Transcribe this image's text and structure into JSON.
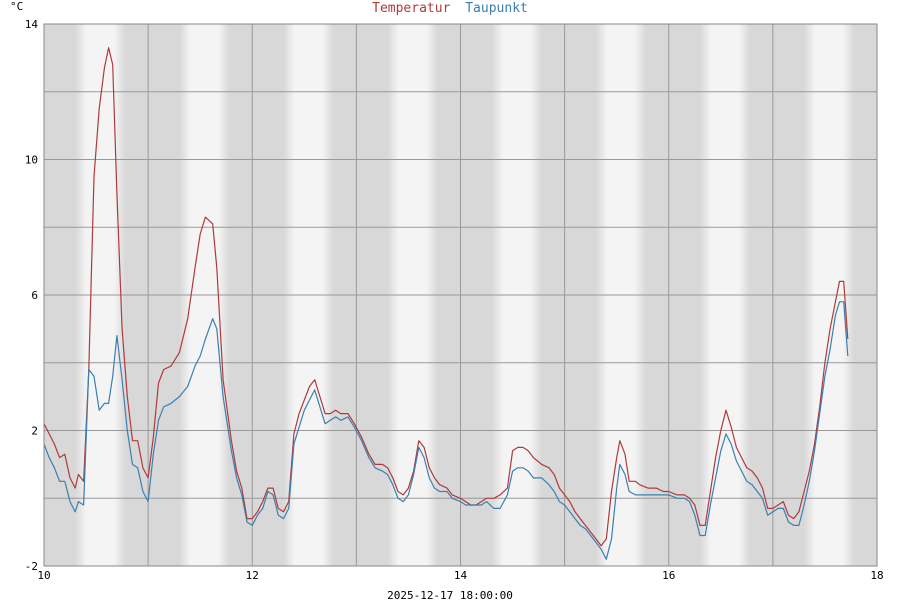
{
  "chart_data": {
    "type": "line",
    "unit_label": "°C",
    "footer": "2025-12-17 18:00:00",
    "title_parts": [
      {
        "text": "Temperatur",
        "color": "#b03a3a"
      },
      {
        "text": "Taupunkt",
        "color": "#3a7fb0"
      }
    ],
    "xlim": [
      10,
      18
    ],
    "ylim": [
      -2,
      14
    ],
    "x_ticks": [
      "10",
      "12",
      "14",
      "16",
      "18"
    ],
    "y_ticks": [
      "-2",
      "2",
      "6",
      "10",
      "14"
    ],
    "grid": true,
    "background": {
      "band_dark": "#d8d8d8",
      "band_light": "#f4f4f4",
      "gridline": "#999999"
    },
    "series": [
      {
        "name": "Temperatur",
        "color": "#b03a3a",
        "points": [
          [
            10.0,
            2.2
          ],
          [
            10.05,
            1.9
          ],
          [
            10.1,
            1.6
          ],
          [
            10.15,
            1.2
          ],
          [
            10.2,
            1.3
          ],
          [
            10.25,
            0.6
          ],
          [
            10.3,
            0.3
          ],
          [
            10.33,
            0.7
          ],
          [
            10.38,
            0.5
          ],
          [
            10.43,
            3.8
          ],
          [
            10.48,
            9.5
          ],
          [
            10.53,
            11.5
          ],
          [
            10.58,
            12.7
          ],
          [
            10.62,
            13.3
          ],
          [
            10.66,
            12.8
          ],
          [
            10.7,
            9.0
          ],
          [
            10.75,
            5.0
          ],
          [
            10.8,
            3.0
          ],
          [
            10.85,
            1.7
          ],
          [
            10.9,
            1.7
          ],
          [
            10.95,
            0.9
          ],
          [
            11.0,
            0.6
          ],
          [
            11.05,
            1.8
          ],
          [
            11.1,
            3.4
          ],
          [
            11.15,
            3.8
          ],
          [
            11.22,
            3.9
          ],
          [
            11.3,
            4.3
          ],
          [
            11.38,
            5.3
          ],
          [
            11.45,
            6.8
          ],
          [
            11.5,
            7.8
          ],
          [
            11.55,
            8.3
          ],
          [
            11.62,
            8.1
          ],
          [
            11.66,
            6.8
          ],
          [
            11.72,
            3.5
          ],
          [
            11.8,
            1.7
          ],
          [
            11.85,
            0.8
          ],
          [
            11.9,
            0.3
          ],
          [
            11.95,
            -0.6
          ],
          [
            12.0,
            -0.6
          ],
          [
            12.05,
            -0.4
          ],
          [
            12.1,
            -0.1
          ],
          [
            12.15,
            0.3
          ],
          [
            12.2,
            0.3
          ],
          [
            12.25,
            -0.3
          ],
          [
            12.3,
            -0.4
          ],
          [
            12.35,
            -0.1
          ],
          [
            12.4,
            1.9
          ],
          [
            12.45,
            2.5
          ],
          [
            12.5,
            2.9
          ],
          [
            12.55,
            3.3
          ],
          [
            12.6,
            3.5
          ],
          [
            12.65,
            3.0
          ],
          [
            12.7,
            2.5
          ],
          [
            12.75,
            2.5
          ],
          [
            12.8,
            2.6
          ],
          [
            12.85,
            2.5
          ],
          [
            12.92,
            2.5
          ],
          [
            12.98,
            2.2
          ],
          [
            13.05,
            1.8
          ],
          [
            13.12,
            1.3
          ],
          [
            13.18,
            1.0
          ],
          [
            13.25,
            1.0
          ],
          [
            13.3,
            0.9
          ],
          [
            13.35,
            0.6
          ],
          [
            13.4,
            0.2
          ],
          [
            13.45,
            0.1
          ],
          [
            13.5,
            0.3
          ],
          [
            13.55,
            0.8
          ],
          [
            13.6,
            1.7
          ],
          [
            13.65,
            1.5
          ],
          [
            13.7,
            0.9
          ],
          [
            13.75,
            0.6
          ],
          [
            13.8,
            0.4
          ],
          [
            13.87,
            0.3
          ],
          [
            13.92,
            0.1
          ],
          [
            14.0,
            0.0
          ],
          [
            14.05,
            -0.1
          ],
          [
            14.1,
            -0.2
          ],
          [
            14.15,
            -0.2
          ],
          [
            14.2,
            -0.1
          ],
          [
            14.25,
            0.0
          ],
          [
            14.32,
            0.0
          ],
          [
            14.38,
            0.1
          ],
          [
            14.45,
            0.3
          ],
          [
            14.5,
            1.4
          ],
          [
            14.55,
            1.5
          ],
          [
            14.6,
            1.5
          ],
          [
            14.65,
            1.4
          ],
          [
            14.7,
            1.2
          ],
          [
            14.78,
            1.0
          ],
          [
            14.85,
            0.9
          ],
          [
            14.9,
            0.7
          ],
          [
            14.95,
            0.3
          ],
          [
            15.0,
            0.1
          ],
          [
            15.05,
            -0.1
          ],
          [
            15.1,
            -0.4
          ],
          [
            15.15,
            -0.6
          ],
          [
            15.2,
            -0.8
          ],
          [
            15.25,
            -1.0
          ],
          [
            15.3,
            -1.2
          ],
          [
            15.35,
            -1.4
          ],
          [
            15.4,
            -1.2
          ],
          [
            15.45,
            0.2
          ],
          [
            15.5,
            1.2
          ],
          [
            15.53,
            1.7
          ],
          [
            15.58,
            1.3
          ],
          [
            15.62,
            0.5
          ],
          [
            15.68,
            0.5
          ],
          [
            15.72,
            0.4
          ],
          [
            15.8,
            0.3
          ],
          [
            15.88,
            0.3
          ],
          [
            15.95,
            0.2
          ],
          [
            16.0,
            0.2
          ],
          [
            16.08,
            0.1
          ],
          [
            16.15,
            0.1
          ],
          [
            16.2,
            0.0
          ],
          [
            16.25,
            -0.2
          ],
          [
            16.3,
            -0.8
          ],
          [
            16.35,
            -0.8
          ],
          [
            16.4,
            0.2
          ],
          [
            16.45,
            1.2
          ],
          [
            16.5,
            2.0
          ],
          [
            16.55,
            2.6
          ],
          [
            16.6,
            2.1
          ],
          [
            16.65,
            1.5
          ],
          [
            16.7,
            1.2
          ],
          [
            16.75,
            0.9
          ],
          [
            16.8,
            0.8
          ],
          [
            16.85,
            0.6
          ],
          [
            16.9,
            0.3
          ],
          [
            16.95,
            -0.3
          ],
          [
            17.0,
            -0.3
          ],
          [
            17.05,
            -0.2
          ],
          [
            17.1,
            -0.1
          ],
          [
            17.15,
            -0.5
          ],
          [
            17.2,
            -0.6
          ],
          [
            17.25,
            -0.4
          ],
          [
            17.3,
            0.2
          ],
          [
            17.35,
            0.8
          ],
          [
            17.4,
            1.6
          ],
          [
            17.45,
            2.7
          ],
          [
            17.5,
            4.0
          ],
          [
            17.55,
            5.0
          ],
          [
            17.6,
            5.8
          ],
          [
            17.64,
            6.4
          ],
          [
            17.68,
            6.4
          ],
          [
            17.72,
            4.7
          ]
        ]
      },
      {
        "name": "Taupunkt",
        "color": "#3a7fb0",
        "points": [
          [
            10.0,
            1.6
          ],
          [
            10.05,
            1.2
          ],
          [
            10.1,
            0.9
          ],
          [
            10.15,
            0.5
          ],
          [
            10.2,
            0.5
          ],
          [
            10.25,
            -0.1
          ],
          [
            10.3,
            -0.4
          ],
          [
            10.33,
            -0.1
          ],
          [
            10.38,
            -0.2
          ],
          [
            10.43,
            3.8
          ],
          [
            10.48,
            3.6
          ],
          [
            10.53,
            2.6
          ],
          [
            10.58,
            2.8
          ],
          [
            10.62,
            2.8
          ],
          [
            10.66,
            3.6
          ],
          [
            10.7,
            4.8
          ],
          [
            10.75,
            3.5
          ],
          [
            10.8,
            2.0
          ],
          [
            10.85,
            1.0
          ],
          [
            10.9,
            0.9
          ],
          [
            10.95,
            0.2
          ],
          [
            11.0,
            -0.1
          ],
          [
            11.05,
            1.3
          ],
          [
            11.1,
            2.3
          ],
          [
            11.15,
            2.7
          ],
          [
            11.22,
            2.8
          ],
          [
            11.3,
            3.0
          ],
          [
            11.38,
            3.3
          ],
          [
            11.45,
            3.9
          ],
          [
            11.5,
            4.2
          ],
          [
            11.55,
            4.7
          ],
          [
            11.62,
            5.3
          ],
          [
            11.66,
            5.0
          ],
          [
            11.72,
            3.0
          ],
          [
            11.8,
            1.4
          ],
          [
            11.85,
            0.6
          ],
          [
            11.9,
            0.1
          ],
          [
            11.95,
            -0.7
          ],
          [
            12.0,
            -0.8
          ],
          [
            12.05,
            -0.5
          ],
          [
            12.1,
            -0.3
          ],
          [
            12.15,
            0.2
          ],
          [
            12.2,
            0.1
          ],
          [
            12.25,
            -0.5
          ],
          [
            12.3,
            -0.6
          ],
          [
            12.35,
            -0.3
          ],
          [
            12.4,
            1.6
          ],
          [
            12.45,
            2.1
          ],
          [
            12.5,
            2.6
          ],
          [
            12.55,
            2.9
          ],
          [
            12.6,
            3.2
          ],
          [
            12.65,
            2.7
          ],
          [
            12.7,
            2.2
          ],
          [
            12.75,
            2.3
          ],
          [
            12.8,
            2.4
          ],
          [
            12.85,
            2.3
          ],
          [
            12.92,
            2.4
          ],
          [
            12.98,
            2.1
          ],
          [
            13.05,
            1.7
          ],
          [
            13.12,
            1.2
          ],
          [
            13.18,
            0.9
          ],
          [
            13.25,
            0.8
          ],
          [
            13.3,
            0.7
          ],
          [
            13.35,
            0.4
          ],
          [
            13.4,
            0.0
          ],
          [
            13.45,
            -0.1
          ],
          [
            13.5,
            0.1
          ],
          [
            13.55,
            0.7
          ],
          [
            13.6,
            1.5
          ],
          [
            13.65,
            1.2
          ],
          [
            13.7,
            0.6
          ],
          [
            13.75,
            0.3
          ],
          [
            13.8,
            0.2
          ],
          [
            13.87,
            0.2
          ],
          [
            13.92,
            0.0
          ],
          [
            14.0,
            -0.1
          ],
          [
            14.05,
            -0.2
          ],
          [
            14.1,
            -0.2
          ],
          [
            14.15,
            -0.2
          ],
          [
            14.2,
            -0.2
          ],
          [
            14.25,
            -0.1
          ],
          [
            14.32,
            -0.3
          ],
          [
            14.38,
            -0.3
          ],
          [
            14.45,
            0.1
          ],
          [
            14.5,
            0.8
          ],
          [
            14.55,
            0.9
          ],
          [
            14.6,
            0.9
          ],
          [
            14.65,
            0.8
          ],
          [
            14.7,
            0.6
          ],
          [
            14.78,
            0.6
          ],
          [
            14.85,
            0.4
          ],
          [
            14.9,
            0.2
          ],
          [
            14.95,
            -0.1
          ],
          [
            15.0,
            -0.2
          ],
          [
            15.05,
            -0.4
          ],
          [
            15.1,
            -0.6
          ],
          [
            15.15,
            -0.8
          ],
          [
            15.2,
            -0.9
          ],
          [
            15.25,
            -1.1
          ],
          [
            15.3,
            -1.3
          ],
          [
            15.35,
            -1.5
          ],
          [
            15.4,
            -1.8
          ],
          [
            15.45,
            -1.2
          ],
          [
            15.5,
            0.3
          ],
          [
            15.53,
            1.0
          ],
          [
            15.58,
            0.7
          ],
          [
            15.62,
            0.2
          ],
          [
            15.68,
            0.1
          ],
          [
            15.72,
            0.1
          ],
          [
            15.8,
            0.1
          ],
          [
            15.88,
            0.1
          ],
          [
            15.95,
            0.1
          ],
          [
            16.0,
            0.1
          ],
          [
            16.08,
            0.0
          ],
          [
            16.15,
            0.0
          ],
          [
            16.2,
            -0.1
          ],
          [
            16.25,
            -0.5
          ],
          [
            16.3,
            -1.1
          ],
          [
            16.35,
            -1.1
          ],
          [
            16.4,
            -0.2
          ],
          [
            16.45,
            0.6
          ],
          [
            16.5,
            1.4
          ],
          [
            16.55,
            1.9
          ],
          [
            16.6,
            1.6
          ],
          [
            16.65,
            1.1
          ],
          [
            16.7,
            0.8
          ],
          [
            16.75,
            0.5
          ],
          [
            16.8,
            0.4
          ],
          [
            16.85,
            0.2
          ],
          [
            16.9,
            0.0
          ],
          [
            16.95,
            -0.5
          ],
          [
            17.0,
            -0.4
          ],
          [
            17.05,
            -0.3
          ],
          [
            17.1,
            -0.3
          ],
          [
            17.15,
            -0.7
          ],
          [
            17.2,
            -0.8
          ],
          [
            17.25,
            -0.8
          ],
          [
            17.3,
            -0.2
          ],
          [
            17.35,
            0.5
          ],
          [
            17.4,
            1.4
          ],
          [
            17.45,
            2.5
          ],
          [
            17.5,
            3.6
          ],
          [
            17.55,
            4.4
          ],
          [
            17.6,
            5.4
          ],
          [
            17.64,
            5.8
          ],
          [
            17.68,
            5.8
          ],
          [
            17.72,
            4.2
          ]
        ]
      }
    ]
  }
}
